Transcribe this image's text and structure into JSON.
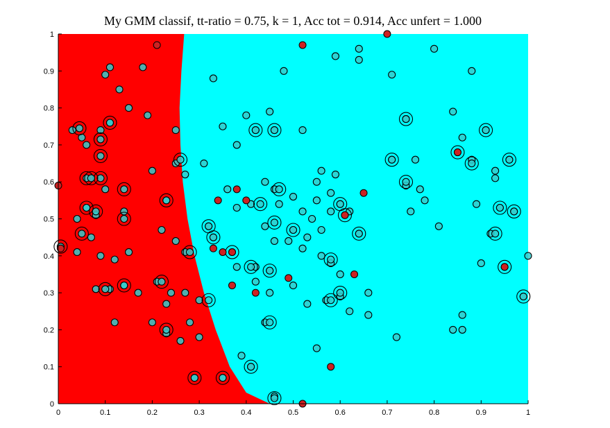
{
  "chart_data": {
    "type": "scatter",
    "title": "My GMM classif, tt-ratio = 0.75, k = 1, Acc tot = 0.914, Acc unfert = 1.000",
    "xlabel": "",
    "ylabel": "",
    "xlim": [
      0,
      1
    ],
    "ylim": [
      0,
      1
    ],
    "x_ticks": [
      "0",
      "0.1",
      "0.2",
      "0.3",
      "0.4",
      "0.5",
      "0.6",
      "0.7",
      "0.8",
      "0.9",
      "1"
    ],
    "y_ticks": [
      "0",
      "0.1",
      "0.2",
      "0.3",
      "0.4",
      "0.5",
      "0.6",
      "0.7",
      "0.8",
      "0.9",
      "1"
    ],
    "grid": false,
    "legend": "none",
    "colors": {
      "region_left": "#ff0000",
      "region_right": "#00ffff",
      "red_marker": "#cc2222",
      "cyan_marker": "#33cccc",
      "marker_edge": "#000000"
    },
    "decision_boundary": [
      {
        "x": 0.268,
        "y": 1.0
      },
      {
        "x": 0.262,
        "y": 0.9
      },
      {
        "x": 0.258,
        "y": 0.8
      },
      {
        "x": 0.26,
        "y": 0.7
      },
      {
        "x": 0.265,
        "y": 0.6
      },
      {
        "x": 0.275,
        "y": 0.5
      },
      {
        "x": 0.29,
        "y": 0.4
      },
      {
        "x": 0.31,
        "y": 0.3
      },
      {
        "x": 0.335,
        "y": 0.2
      },
      {
        "x": 0.365,
        "y": 0.1
      },
      {
        "x": 0.4,
        "y": 0.03
      },
      {
        "x": 0.45,
        "y": 0.0
      }
    ],
    "series": [
      {
        "marker": "red filled circle",
        "points": [
          [
            0.0,
            0.59
          ],
          [
            0.005,
            0.42
          ],
          [
            0.21,
            0.97
          ],
          [
            0.52,
            0.97
          ],
          [
            0.7,
            1.0
          ],
          [
            0.35,
            0.41
          ],
          [
            0.34,
            0.55
          ],
          [
            0.38,
            0.58
          ],
          [
            0.33,
            0.42
          ],
          [
            0.37,
            0.41
          ],
          [
            0.4,
            0.55
          ],
          [
            0.37,
            0.32
          ],
          [
            0.42,
            0.3
          ],
          [
            0.49,
            0.34
          ],
          [
            0.61,
            0.51
          ],
          [
            0.65,
            0.57
          ],
          [
            0.63,
            0.35
          ],
          [
            0.85,
            0.68
          ],
          [
            0.95,
            0.37
          ],
          [
            0.58,
            0.1
          ],
          [
            0.52,
            0.0
          ]
        ]
      },
      {
        "marker": "open circle",
        "points": [
          [
            0.03,
            0.74
          ],
          [
            0.05,
            0.72
          ],
          [
            0.06,
            0.7
          ],
          [
            0.09,
            0.74
          ],
          [
            0.11,
            0.76
          ],
          [
            0.04,
            0.5
          ],
          [
            0.06,
            0.53
          ],
          [
            0.08,
            0.51
          ],
          [
            0.1,
            0.58
          ],
          [
            0.14,
            0.52
          ],
          [
            0.04,
            0.41
          ],
          [
            0.07,
            0.45
          ],
          [
            0.09,
            0.4
          ],
          [
            0.12,
            0.39
          ],
          [
            0.15,
            0.41
          ],
          [
            0.08,
            0.31
          ],
          [
            0.11,
            0.31
          ],
          [
            0.14,
            0.32
          ],
          [
            0.17,
            0.3
          ],
          [
            0.12,
            0.22
          ],
          [
            0.2,
            0.22
          ],
          [
            0.23,
            0.19
          ],
          [
            0.26,
            0.17
          ],
          [
            0.29,
            0.07
          ],
          [
            0.35,
            0.07
          ],
          [
            0.39,
            0.13
          ],
          [
            0.1,
            0.89
          ],
          [
            0.11,
            0.91
          ],
          [
            0.13,
            0.85
          ],
          [
            0.15,
            0.8
          ],
          [
            0.18,
            0.91
          ],
          [
            0.19,
            0.78
          ],
          [
            0.2,
            0.63
          ],
          [
            0.23,
            0.55
          ],
          [
            0.25,
            0.65
          ],
          [
            0.22,
            0.47
          ],
          [
            0.25,
            0.44
          ],
          [
            0.27,
            0.41
          ],
          [
            0.21,
            0.33
          ],
          [
            0.24,
            0.3
          ],
          [
            0.27,
            0.3
          ],
          [
            0.3,
            0.28
          ],
          [
            0.23,
            0.27
          ],
          [
            0.28,
            0.22
          ],
          [
            0.3,
            0.18
          ],
          [
            0.25,
            0.74
          ],
          [
            0.27,
            0.62
          ],
          [
            0.31,
            0.65
          ],
          [
            0.33,
            0.88
          ],
          [
            0.35,
            0.75
          ],
          [
            0.38,
            0.7
          ],
          [
            0.4,
            0.78
          ],
          [
            0.42,
            0.74
          ],
          [
            0.46,
            0.74
          ],
          [
            0.45,
            0.79
          ],
          [
            0.48,
            0.9
          ],
          [
            0.52,
            0.74
          ],
          [
            0.32,
            0.48
          ],
          [
            0.33,
            0.45
          ],
          [
            0.36,
            0.58
          ],
          [
            0.38,
            0.53
          ],
          [
            0.41,
            0.54
          ],
          [
            0.44,
            0.6
          ],
          [
            0.46,
            0.58
          ],
          [
            0.47,
            0.54
          ],
          [
            0.5,
            0.56
          ],
          [
            0.52,
            0.52
          ],
          [
            0.54,
            0.5
          ],
          [
            0.44,
            0.48
          ],
          [
            0.46,
            0.44
          ],
          [
            0.5,
            0.47
          ],
          [
            0.53,
            0.45
          ],
          [
            0.56,
            0.47
          ],
          [
            0.58,
            0.52
          ],
          [
            0.6,
            0.54
          ],
          [
            0.62,
            0.52
          ],
          [
            0.64,
            0.46
          ],
          [
            0.38,
            0.37
          ],
          [
            0.42,
            0.37
          ],
          [
            0.45,
            0.36
          ],
          [
            0.49,
            0.44
          ],
          [
            0.52,
            0.42
          ],
          [
            0.56,
            0.4
          ],
          [
            0.58,
            0.38
          ],
          [
            0.6,
            0.35
          ],
          [
            0.42,
            0.33
          ],
          [
            0.45,
            0.3
          ],
          [
            0.5,
            0.32
          ],
          [
            0.53,
            0.27
          ],
          [
            0.57,
            0.28
          ],
          [
            0.6,
            0.29
          ],
          [
            0.62,
            0.25
          ],
          [
            0.66,
            0.3
          ],
          [
            0.44,
            0.22
          ],
          [
            0.41,
            0.1
          ],
          [
            0.46,
            0.02
          ],
          [
            0.55,
            0.15
          ],
          [
            0.59,
            0.94
          ],
          [
            0.64,
            0.96
          ],
          [
            0.64,
            0.93
          ],
          [
            0.71,
            0.89
          ],
          [
            0.71,
            0.66
          ],
          [
            0.74,
            0.77
          ],
          [
            0.76,
            0.66
          ],
          [
            0.74,
            0.59
          ],
          [
            0.77,
            0.58
          ],
          [
            0.78,
            0.55
          ],
          [
            0.75,
            0.52
          ],
          [
            0.81,
            0.48
          ],
          [
            0.8,
            0.96
          ],
          [
            0.84,
            0.79
          ],
          [
            0.88,
            0.9
          ],
          [
            0.86,
            0.72
          ],
          [
            0.88,
            0.66
          ],
          [
            0.91,
            0.74
          ],
          [
            0.93,
            0.63
          ],
          [
            0.96,
            0.66
          ],
          [
            0.93,
            0.61
          ],
          [
            0.94,
            0.53
          ],
          [
            0.97,
            0.52
          ],
          [
            0.89,
            0.54
          ],
          [
            0.92,
            0.46
          ],
          [
            0.9,
            0.38
          ],
          [
            0.84,
            0.2
          ],
          [
            0.86,
            0.24
          ],
          [
            0.86,
            0.2
          ],
          [
            0.99,
            0.29
          ],
          [
            1.0,
            0.4
          ],
          [
            0.72,
            0.18
          ],
          [
            0.66,
            0.24
          ],
          [
            0.56,
            0.63
          ],
          [
            0.55,
            0.6
          ],
          [
            0.59,
            0.62
          ],
          [
            0.58,
            0.57
          ],
          [
            0.55,
            0.55
          ]
        ]
      },
      {
        "marker": "double ring",
        "points": [
          [
            0.045,
            0.745
          ],
          [
            0.09,
            0.715
          ],
          [
            0.11,
            0.76
          ],
          [
            0.06,
            0.61
          ],
          [
            0.09,
            0.61
          ],
          [
            0.14,
            0.58
          ],
          [
            0.06,
            0.53
          ],
          [
            0.08,
            0.52
          ],
          [
            0.14,
            0.5
          ],
          [
            0.05,
            0.46
          ],
          [
            0.005,
            0.425
          ],
          [
            0.1,
            0.31
          ],
          [
            0.14,
            0.32
          ],
          [
            0.07,
            0.61
          ],
          [
            0.23,
            0.55
          ],
          [
            0.26,
            0.66
          ],
          [
            0.22,
            0.33
          ],
          [
            0.23,
            0.2
          ],
          [
            0.28,
            0.41
          ],
          [
            0.32,
            0.28
          ],
          [
            0.29,
            0.07
          ],
          [
            0.35,
            0.07
          ],
          [
            0.41,
            0.1
          ],
          [
            0.46,
            0.015
          ],
          [
            0.32,
            0.48
          ],
          [
            0.33,
            0.45
          ],
          [
            0.37,
            0.41
          ],
          [
            0.41,
            0.37
          ],
          [
            0.45,
            0.36
          ],
          [
            0.42,
            0.74
          ],
          [
            0.46,
            0.74
          ],
          [
            0.43,
            0.54
          ],
          [
            0.47,
            0.58
          ],
          [
            0.46,
            0.49
          ],
          [
            0.5,
            0.47
          ],
          [
            0.6,
            0.54
          ],
          [
            0.61,
            0.51
          ],
          [
            0.64,
            0.46
          ],
          [
            0.58,
            0.39
          ],
          [
            0.58,
            0.28
          ],
          [
            0.6,
            0.3
          ],
          [
            0.45,
            0.22
          ],
          [
            0.71,
            0.66
          ],
          [
            0.74,
            0.77
          ],
          [
            0.74,
            0.6
          ],
          [
            0.85,
            0.68
          ],
          [
            0.88,
            0.65
          ],
          [
            0.91,
            0.74
          ],
          [
            0.96,
            0.66
          ],
          [
            0.94,
            0.53
          ],
          [
            0.97,
            0.52
          ],
          [
            0.93,
            0.46
          ],
          [
            0.95,
            0.37
          ],
          [
            0.99,
            0.29
          ],
          [
            0.09,
            0.67
          ]
        ]
      }
    ]
  }
}
